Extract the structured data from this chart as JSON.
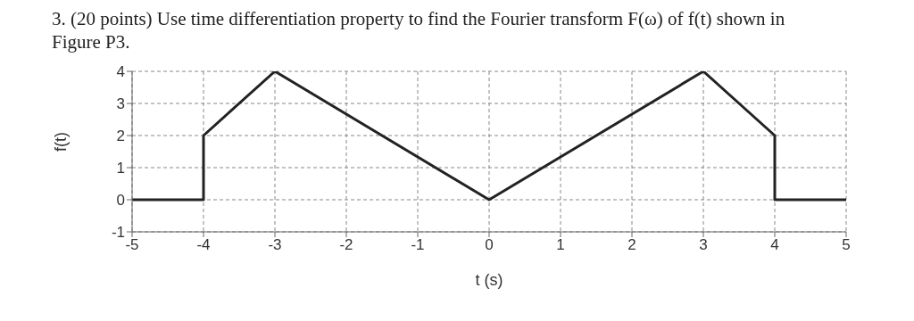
{
  "chart_data": {
    "type": "line",
    "title": "3. (20 points) Use time differentiation property to find the Fourier transform F(ω) of f(t) shown in Figure P3.",
    "xlabel": "t (s)",
    "ylabel": "f(t)",
    "x": [
      -5,
      -4,
      -4,
      -3,
      0,
      3,
      4,
      4,
      5
    ],
    "series": [
      {
        "color": "#222222",
        "values": [
          0,
          0,
          2,
          4,
          0,
          4,
          2,
          0,
          0
        ]
      }
    ],
    "xlim": [
      -5,
      5
    ],
    "xticks": [
      -5,
      -4,
      -3,
      -2,
      -1,
      0,
      1,
      2,
      3,
      4,
      5
    ],
    "ylim": [
      -1,
      4
    ],
    "yticks": [
      -1,
      0,
      1,
      2,
      3,
      4
    ],
    "grid": true,
    "line_style": "solid",
    "marker": "none"
  }
}
